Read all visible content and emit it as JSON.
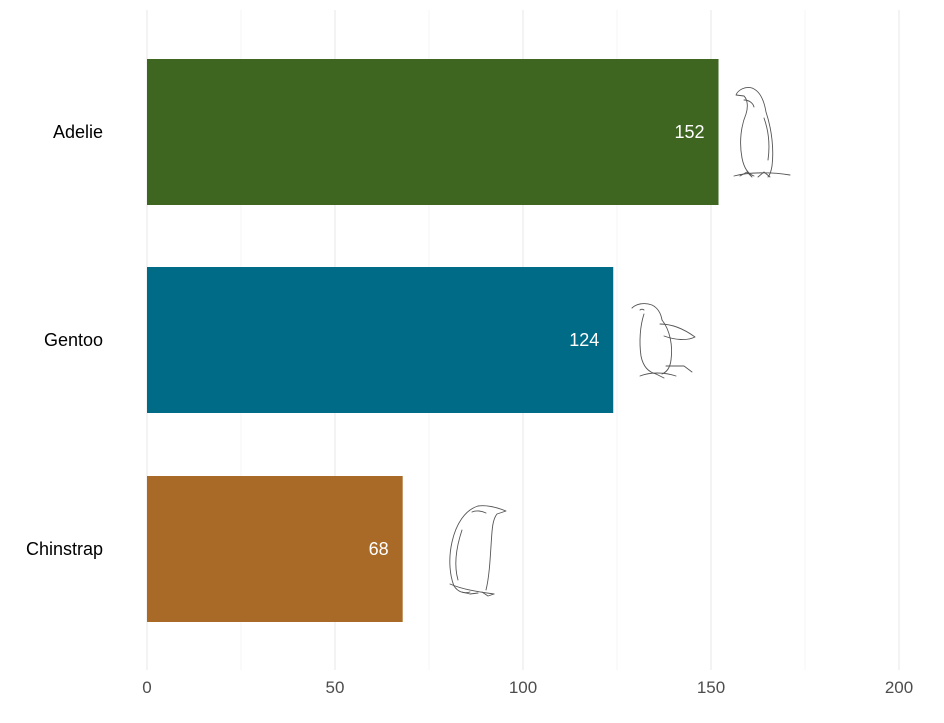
{
  "chart_data": {
    "type": "bar",
    "orientation": "horizontal",
    "categories": [
      "Adelie",
      "Gentoo",
      "Chinstrap"
    ],
    "values": [
      152,
      124,
      68
    ],
    "colors": [
      "#3f6621",
      "#006b87",
      "#a86a26"
    ],
    "data_labels": [
      "152",
      "124",
      "68"
    ],
    "x_ticks": [
      0,
      50,
      100,
      150,
      200
    ],
    "x_tick_labels": [
      "0",
      "50",
      "100",
      "150",
      "200"
    ],
    "xlim": [
      0,
      200
    ],
    "title": "",
    "xlabel": "",
    "ylabel": "",
    "grid": true,
    "legend": "none",
    "bar_icons": [
      "penguin-adelie-icon",
      "penguin-gentoo-icon",
      "penguin-chinstrap-icon"
    ]
  }
}
